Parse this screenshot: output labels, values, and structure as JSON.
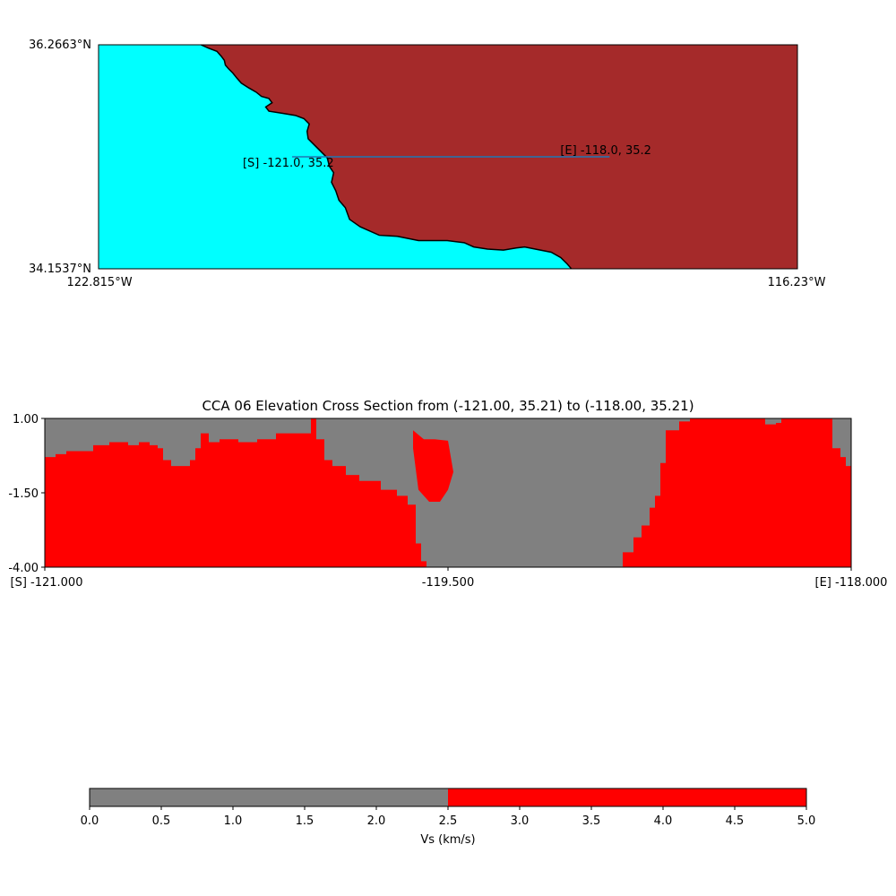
{
  "colors": {
    "ocean": "#00ffff",
    "land": "#a52a2a",
    "coast": "#000000",
    "path_line": "#1f77b4",
    "low_vs": "#808080",
    "high_vs": "#ff0000"
  },
  "map": {
    "lat_top_label": "36.2663°N",
    "lat_bottom_label": "34.1537°N",
    "lon_left_label": "122.815°W",
    "lon_right_label": "116.23°W",
    "lon_range": [
      -122.815,
      -116.23
    ],
    "lat_range": [
      34.1537,
      36.2663
    ],
    "coastline": [
      [
        -121.85,
        36.2663
      ],
      [
        -121.78,
        36.235
      ],
      [
        -121.7,
        36.205
      ],
      [
        -121.66,
        36.16
      ],
      [
        -121.63,
        36.12
      ],
      [
        -121.62,
        36.075
      ],
      [
        -121.59,
        36.04
      ],
      [
        -121.55,
        36.0
      ],
      [
        -121.51,
        35.95
      ],
      [
        -121.47,
        35.905
      ],
      [
        -121.4,
        35.86
      ],
      [
        -121.33,
        35.82
      ],
      [
        -121.28,
        35.78
      ],
      [
        -121.21,
        35.76
      ],
      [
        -121.18,
        35.72
      ],
      [
        -121.24,
        35.68
      ],
      [
        -121.21,
        35.64
      ],
      [
        -121.08,
        35.62
      ],
      [
        -120.96,
        35.6
      ],
      [
        -120.88,
        35.57
      ],
      [
        -120.83,
        35.52
      ],
      [
        -120.85,
        35.45
      ],
      [
        -120.84,
        35.38
      ],
      [
        -120.79,
        35.33
      ],
      [
        -120.66,
        35.2
      ],
      [
        -120.64,
        35.12
      ],
      [
        -120.6,
        35.06
      ],
      [
        -120.62,
        34.97
      ],
      [
        -120.58,
        34.89
      ],
      [
        -120.55,
        34.8
      ],
      [
        -120.49,
        34.73
      ],
      [
        -120.45,
        34.62
      ],
      [
        -120.35,
        34.55
      ],
      [
        -120.17,
        34.47
      ],
      [
        -120.0,
        34.46
      ],
      [
        -119.8,
        34.42
      ],
      [
        -119.53,
        34.42
      ],
      [
        -119.37,
        34.4
      ],
      [
        -119.28,
        34.36
      ],
      [
        -119.15,
        34.34
      ],
      [
        -119.0,
        34.33
      ],
      [
        -118.88,
        34.35
      ],
      [
        -118.8,
        34.36
      ],
      [
        -118.7,
        34.34
      ],
      [
        -118.55,
        34.31
      ],
      [
        -118.46,
        34.26
      ],
      [
        -118.4,
        34.2
      ],
      [
        -118.36,
        34.1537
      ]
    ],
    "cross_section_line": {
      "start": [
        -121.0,
        35.21
      ],
      "end": [
        -118.0,
        35.21
      ]
    },
    "start_label": "[S] -121.0, 35.2",
    "end_label": "[E] -118.0, 35.2"
  },
  "chart_data": {
    "type": "heatmap",
    "title": "CCA 06 Elevation Cross Section from (-121.00, 35.21) to (-118.00, 35.21)",
    "x_range": [
      -121.0,
      -118.0
    ],
    "y_range": [
      -4.0,
      1.0
    ],
    "y_tick_labels": [
      "1.00",
      "-1.50",
      "-4.00"
    ],
    "y_tick_values": [
      1.0,
      -1.5,
      -4.0
    ],
    "x_tick_labels": [
      "[S] -121.000",
      "-119.500",
      "[E] -118.000"
    ],
    "x_tick_values": [
      -121.0,
      -119.5,
      -118.0
    ],
    "value_field": "Vs (km/s)",
    "classes": [
      {
        "range": [
          0.0,
          2.5
        ],
        "color": "#808080"
      },
      {
        "range": [
          2.5,
          5.0
        ],
        "color": "#ff0000"
      }
    ],
    "high_vs_top_profile": [
      [
        -121.0,
        -0.3
      ],
      [
        -120.96,
        -0.2
      ],
      [
        -120.92,
        -0.1
      ],
      [
        -120.86,
        -0.1
      ],
      [
        -120.82,
        0.1
      ],
      [
        -120.76,
        0.2
      ],
      [
        -120.69,
        0.1
      ],
      [
        -120.65,
        0.2
      ],
      [
        -120.61,
        0.1
      ],
      [
        -120.58,
        0.0
      ],
      [
        -120.56,
        -0.4
      ],
      [
        -120.53,
        -0.6
      ],
      [
        -120.49,
        -0.6
      ],
      [
        -120.46,
        -0.4
      ],
      [
        -120.44,
        0.0
      ],
      [
        -120.42,
        0.5
      ],
      [
        -120.39,
        0.2
      ],
      [
        -120.35,
        0.3
      ],
      [
        -120.28,
        0.2
      ],
      [
        -120.21,
        0.3
      ],
      [
        -120.14,
        0.5
      ],
      [
        -120.07,
        0.5
      ],
      [
        -120.01,
        1.0
      ],
      [
        -119.99,
        0.3
      ],
      [
        -119.96,
        -0.4
      ],
      [
        -119.93,
        -0.6
      ],
      [
        -119.88,
        -0.9
      ],
      [
        -119.83,
        -1.1
      ],
      [
        -119.75,
        -1.4
      ],
      [
        -119.69,
        -1.6
      ],
      [
        -119.65,
        -1.9
      ],
      [
        -119.62,
        -3.2
      ],
      [
        -119.6,
        -3.8
      ],
      [
        -119.58,
        -4.0
      ]
    ],
    "high_vs_pocket": [
      [
        -119.63,
        0.6
      ],
      [
        -119.59,
        0.3
      ],
      [
        -119.55,
        0.3
      ],
      [
        -119.5,
        0.25
      ],
      [
        -119.48,
        -0.8
      ],
      [
        -119.5,
        -1.4
      ],
      [
        -119.53,
        -1.8
      ],
      [
        -119.57,
        -1.8
      ],
      [
        -119.61,
        -1.4
      ],
      [
        -119.62,
        -0.7
      ],
      [
        -119.63,
        0.0
      ]
    ],
    "high_vs_east_profile": [
      [
        -118.87,
        -4.0
      ],
      [
        -118.85,
        -3.5
      ],
      [
        -118.81,
        -3.0
      ],
      [
        -118.78,
        -2.6
      ],
      [
        -118.75,
        -2.0
      ],
      [
        -118.73,
        -1.6
      ],
      [
        -118.71,
        -0.5
      ],
      [
        -118.69,
        0.6
      ],
      [
        -118.64,
        0.9
      ],
      [
        -118.6,
        1.0
      ],
      [
        -118.34,
        1.0
      ],
      [
        -118.32,
        0.8
      ],
      [
        -118.28,
        0.85
      ],
      [
        -118.26,
        1.0
      ],
      [
        -118.08,
        1.0
      ],
      [
        -118.07,
        0.0
      ],
      [
        -118.04,
        -0.3
      ],
      [
        -118.02,
        -0.6
      ],
      [
        -118.0,
        -0.7
      ]
    ]
  },
  "colorbar": {
    "range": [
      0.0,
      5.0
    ],
    "tick_labels": [
      "0.0",
      "0.5",
      "1.0",
      "1.5",
      "2.0",
      "2.5",
      "3.0",
      "3.5",
      "4.0",
      "4.5",
      "5.0"
    ],
    "tick_values": [
      0.0,
      0.5,
      1.0,
      1.5,
      2.0,
      2.5,
      3.0,
      3.5,
      4.0,
      4.5,
      5.0
    ],
    "boundary": 2.5,
    "label": "Vs (km/s)"
  }
}
